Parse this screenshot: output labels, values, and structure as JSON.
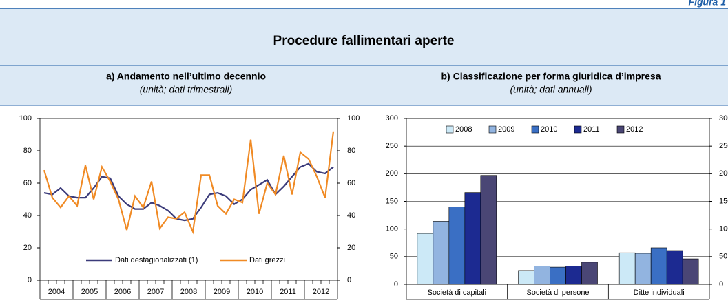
{
  "figure_label": "Figura 1",
  "title": "Procedure fallimentari aperte",
  "chart_data": [
    {
      "type": "line",
      "title": "a) Andamento nell’ultimo decennio",
      "subtitle": "(unità; dati trimestrali)",
      "years": [
        "2004",
        "2005",
        "2006",
        "2007",
        "2008",
        "2009",
        "2010",
        "2011",
        "2012"
      ],
      "series": [
        {
          "name": "Dati destagionalizzati (1)",
          "color": "#3b3b7a",
          "values": [
            54,
            53,
            57,
            52,
            51,
            51,
            57,
            64,
            63,
            52,
            47,
            44,
            44,
            48,
            46,
            43,
            38,
            37,
            38,
            45,
            53,
            54,
            52,
            47,
            50,
            56,
            59,
            62,
            53,
            58,
            64,
            70,
            72,
            67,
            66,
            70
          ]
        },
        {
          "name": "Dati grezzi",
          "color": "#f08a24",
          "values": [
            68,
            51,
            45,
            52,
            46,
            71,
            50,
            70,
            61,
            50,
            31,
            52,
            45,
            61,
            32,
            39,
            38,
            42,
            30,
            65,
            65,
            46,
            41,
            50,
            48,
            87,
            41,
            60,
            53,
            77,
            53,
            79,
            75,
            64,
            51,
            92
          ]
        }
      ],
      "ylim": [
        0,
        100
      ],
      "yticks": [
        0,
        20,
        40,
        60,
        80,
        100
      ],
      "y2lim": [
        0,
        100
      ],
      "y2ticks": [
        0,
        20,
        40,
        60,
        80,
        100
      ]
    },
    {
      "type": "bar",
      "title": "b) Classificazione per forma giuridica d’impresa",
      "subtitle": "(unità; dati annuali)",
      "categories": [
        "Società di capitali",
        "Società di persone",
        "Ditte individuali"
      ],
      "series": [
        {
          "name": "2008",
          "color": "#cce9f7",
          "values": [
            92,
            25,
            57
          ]
        },
        {
          "name": "2009",
          "color": "#92b4e0",
          "values": [
            114,
            33,
            56
          ]
        },
        {
          "name": "2010",
          "color": "#3a6fc4",
          "values": [
            140,
            31,
            66
          ]
        },
        {
          "name": "2011",
          "color": "#1c2a91",
          "values": [
            166,
            33,
            61
          ]
        },
        {
          "name": "2012",
          "color": "#4a4675",
          "values": [
            197,
            40,
            46
          ]
        }
      ],
      "ylim": [
        0,
        300
      ],
      "yticks": [
        0,
        50,
        100,
        150,
        200,
        250,
        300
      ],
      "y2lim": [
        0,
        300
      ],
      "y2ticks": [
        0,
        50,
        100,
        150,
        200,
        250,
        300
      ],
      "grid": true
    }
  ]
}
